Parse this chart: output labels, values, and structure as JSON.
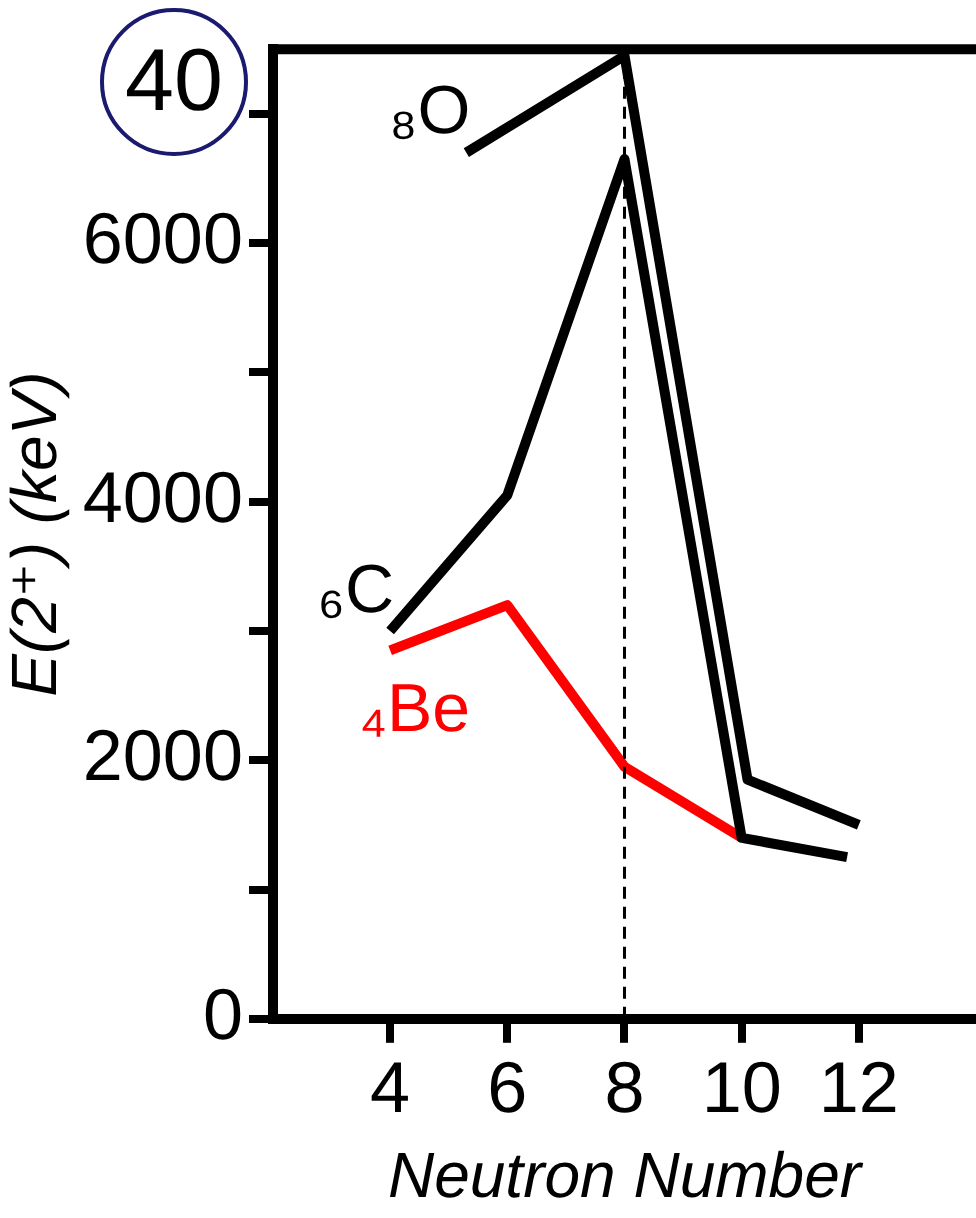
{
  "chart_data": {
    "type": "line",
    "xlabel": "Neutron Number",
    "ylabel": "E(2⁺) (keV)",
    "xlim": [
      2,
      14
    ],
    "xticks": [
      4,
      6,
      8,
      10,
      12
    ],
    "ylim": [
      0,
      7500
    ],
    "yticks": [
      0,
      {
        "value": 1000,
        "label": null
      },
      2000,
      {
        "value": 3000,
        "label": null
      },
      4000,
      {
        "value": 5000,
        "label": null
      },
      6000,
      {
        "value": 7000,
        "label": null
      }
    ],
    "series": [
      {
        "name": "₈O",
        "color": "#000000",
        "x": [
          5.3,
          8,
          10.1,
          12
        ],
        "values": [
          6700,
          7450,
          1850,
          1500
        ]
      },
      {
        "name": "₆C",
        "color": "#000000",
        "x": [
          4,
          6,
          8,
          10,
          11.8
        ],
        "values": [
          3000,
          4050,
          6650,
          1400,
          1250
        ]
      },
      {
        "name": "₄Be",
        "color": "#ff0000",
        "x": [
          4,
          6,
          8,
          10
        ],
        "values": [
          2850,
          3200,
          1950,
          1400
        ]
      }
    ],
    "ref_lines": [
      {
        "axis": "x",
        "value": 8,
        "color": "#000000",
        "line_style": "dashed"
      }
    ],
    "annotations": [
      "40"
    ],
    "grid": false,
    "legend": "left",
    "marker": "none",
    "line_style": "solid"
  }
}
